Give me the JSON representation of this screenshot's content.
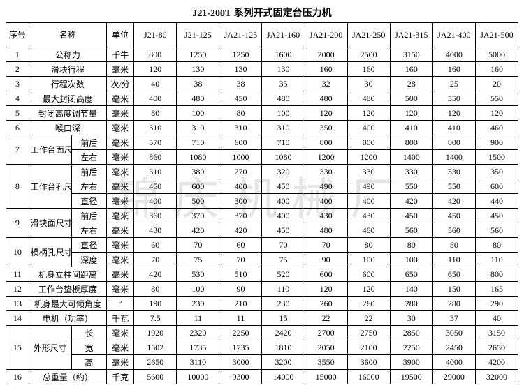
{
  "title": "J21-200T 系列开式固定台压力机",
  "headers": {
    "seq": "序号",
    "name": "名称",
    "unit": "单位",
    "models": [
      "J21-80",
      "J21-125",
      "JA21-125",
      "JA21-160",
      "JA21-200",
      "JA21-250",
      "JA21-315",
      "JA21-400",
      "JA21-500"
    ]
  },
  "rows": [
    {
      "seq": "1",
      "name": "公称力",
      "unit": "千牛",
      "v": [
        "800",
        "1250",
        "1250",
        "1600",
        "2000",
        "2500",
        "3150",
        "4000",
        "5000"
      ]
    },
    {
      "seq": "2",
      "name": "滑块行程",
      "unit": "毫米",
      "v": [
        "120",
        "130",
        "130",
        "130",
        "160",
        "160",
        "160",
        "160",
        "160"
      ]
    },
    {
      "seq": "3",
      "name": "行程次数",
      "unit": "次/分",
      "v": [
        "40",
        "38",
        "38",
        "35",
        "32",
        "30",
        "28",
        "25",
        "20"
      ]
    },
    {
      "seq": "4",
      "name": "最大封闭高度",
      "unit": "毫米",
      "v": [
        "400",
        "480",
        "450",
        "480",
        "480",
        "480",
        "500",
        "550",
        "550"
      ]
    },
    {
      "seq": "5",
      "name": "封闭高度调节量",
      "unit": "毫米",
      "v": [
        "80",
        "100",
        "80",
        "100",
        "120",
        "120",
        "120",
        "120",
        "120"
      ]
    },
    {
      "seq": "6",
      "name": "喉口深",
      "unit": "毫米",
      "v": [
        "310",
        "310",
        "310",
        "310",
        "350",
        "400",
        "410",
        "410",
        "460"
      ]
    },
    {
      "seq": "7",
      "name": "工作台面尺寸",
      "sub": [
        {
          "sub": "前后",
          "unit": "毫米",
          "v": [
            "570",
            "710",
            "600",
            "710",
            "800",
            "800",
            "800",
            "800",
            "900"
          ]
        },
        {
          "sub": "左右",
          "unit": "毫米",
          "v": [
            "860",
            "1080",
            "1000",
            "1080",
            "1200",
            "1200",
            "1400",
            "1400",
            "1500"
          ]
        }
      ]
    },
    {
      "seq": "8",
      "name": "工作台孔尺寸",
      "sub": [
        {
          "sub": "前后",
          "unit": "毫米",
          "v": [
            "310",
            "380",
            "270",
            "320",
            "330",
            "330",
            "330",
            "330",
            "350"
          ]
        },
        {
          "sub": "左右",
          "unit": "毫米",
          "v": [
            "450",
            "600",
            "400",
            "450",
            "490",
            "490",
            "550",
            "550",
            "600"
          ]
        },
        {
          "sub": "直径",
          "unit": "毫米",
          "v": [
            "400",
            "500",
            "300",
            "400",
            "400",
            "400",
            "420",
            "420",
            "440"
          ]
        }
      ]
    },
    {
      "seq": "9",
      "name": "滑块面尺寸",
      "sub": [
        {
          "sub": "前后",
          "unit": "毫米",
          "v": [
            "360",
            "370",
            "370",
            "400",
            "430",
            "430",
            "450",
            "450",
            "450"
          ]
        },
        {
          "sub": "左右",
          "unit": "毫米",
          "v": [
            "430",
            "420",
            "420",
            "450",
            "480",
            "480",
            "560",
            "560",
            "560"
          ]
        }
      ]
    },
    {
      "seq": "10",
      "name": "模柄孔尺寸",
      "sub": [
        {
          "sub": "直径",
          "unit": "毫米",
          "v": [
            "60",
            "70",
            "60",
            "70",
            "70",
            "80",
            "80",
            "80",
            "80"
          ]
        },
        {
          "sub": "深度",
          "unit": "毫米",
          "v": [
            "70",
            "75",
            "70",
            "75",
            "90",
            "100",
            "100",
            "110",
            "110"
          ]
        }
      ]
    },
    {
      "seq": "11",
      "name": "机身立柱间距离",
      "unit": "毫米",
      "v": [
        "420",
        "530",
        "510",
        "520",
        "600",
        "600",
        "650",
        "650",
        "800"
      ]
    },
    {
      "seq": "12",
      "name": "工作台垫板厚度",
      "unit": "毫米",
      "v": [
        "80",
        "100",
        "90",
        "110",
        "120",
        "120",
        "140",
        "150",
        "165"
      ]
    },
    {
      "seq": "13",
      "name": "机身最大可倾角度",
      "unit": "°",
      "v": [
        "190",
        "230",
        "210",
        "230",
        "260",
        "260",
        "280",
        "280",
        "290"
      ]
    },
    {
      "seq": "14",
      "name": "电机（功率）",
      "unit": "千瓦",
      "v": [
        "7.5",
        "11",
        "11",
        "15",
        "22",
        "22",
        "30",
        "37",
        "40"
      ]
    },
    {
      "seq": "15",
      "name": "外形尺寸",
      "sub": [
        {
          "sub": "长",
          "unit": "毫米",
          "v": [
            "1920",
            "2320",
            "2250",
            "2420",
            "2700",
            "2750",
            "2850",
            "3050",
            "3150"
          ]
        },
        {
          "sub": "宽",
          "unit": "毫米",
          "v": [
            "1502",
            "1735",
            "1735",
            "1810",
            "2050",
            "2100",
            "2250",
            "2450",
            "2650"
          ]
        },
        {
          "sub": "高",
          "unit": "毫米",
          "v": [
            "2650",
            "3110",
            "3000",
            "3200",
            "3550",
            "3600",
            "3900",
            "4000",
            "4200"
          ]
        }
      ]
    },
    {
      "seq": "16",
      "name": "总重量（约）",
      "unit": "千克",
      "v": [
        "5600",
        "10000",
        "9300",
        "14000",
        "15000",
        "16000",
        "19500",
        "29000",
        "32000"
      ]
    }
  ],
  "watermark": "锦庆机械厂"
}
